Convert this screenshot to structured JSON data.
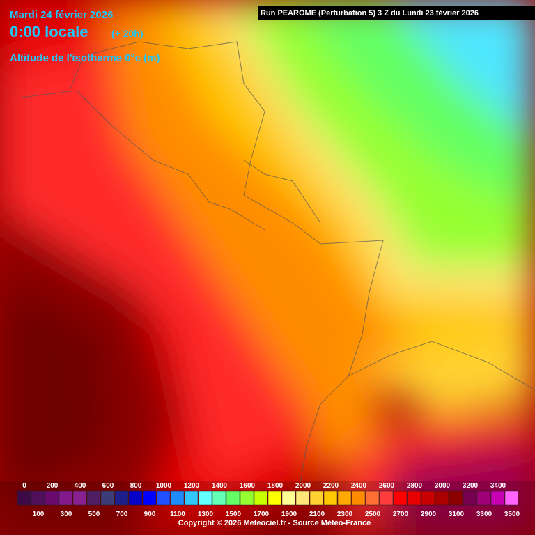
{
  "header": {
    "date": "Mardi 24 février 2026",
    "time": "0:00 locale",
    "lead": "(+ 20h)",
    "field": "Altitude de l'isotherme 0°c (m)",
    "run": "Run PEAROME (Perturbation 5) 3 Z du Lundi 23 février 2026"
  },
  "legend": {
    "levels": [
      0,
      100,
      200,
      300,
      400,
      500,
      600,
      700,
      800,
      900,
      1000,
      1100,
      1200,
      1300,
      1400,
      1500,
      1600,
      1700,
      1800,
      1900,
      2000,
      2100,
      2200,
      2300,
      2400,
      2500,
      2600,
      2700,
      2800,
      2900,
      3000,
      3100,
      3200,
      3300,
      3400,
      3500
    ],
    "colors": [
      "#3c0a46",
      "#500f5a",
      "#6a0a6e",
      "#821a8c",
      "#882090",
      "#501e64",
      "#3c3c78",
      "#1e1e8c",
      "#0000c8",
      "#0000ff",
      "#1e50ff",
      "#1e8cff",
      "#32c8ff",
      "#64ffff",
      "#64ffb4",
      "#64ff64",
      "#96ff32",
      "#c8ff00",
      "#ffff00",
      "#ffff96",
      "#ffe678",
      "#ffd232",
      "#ffc800",
      "#ffaa00",
      "#ff8c00",
      "#ff6e32",
      "#ff3c3c",
      "#ff0000",
      "#e60000",
      "#c80000",
      "#aa0000",
      "#8c0000",
      "#780050",
      "#a00078",
      "#c800b4",
      "#ff64ff"
    ]
  },
  "footer": {
    "copyright": "Copyright © 2026 Meteociel.fr - Source Météo-France"
  }
}
